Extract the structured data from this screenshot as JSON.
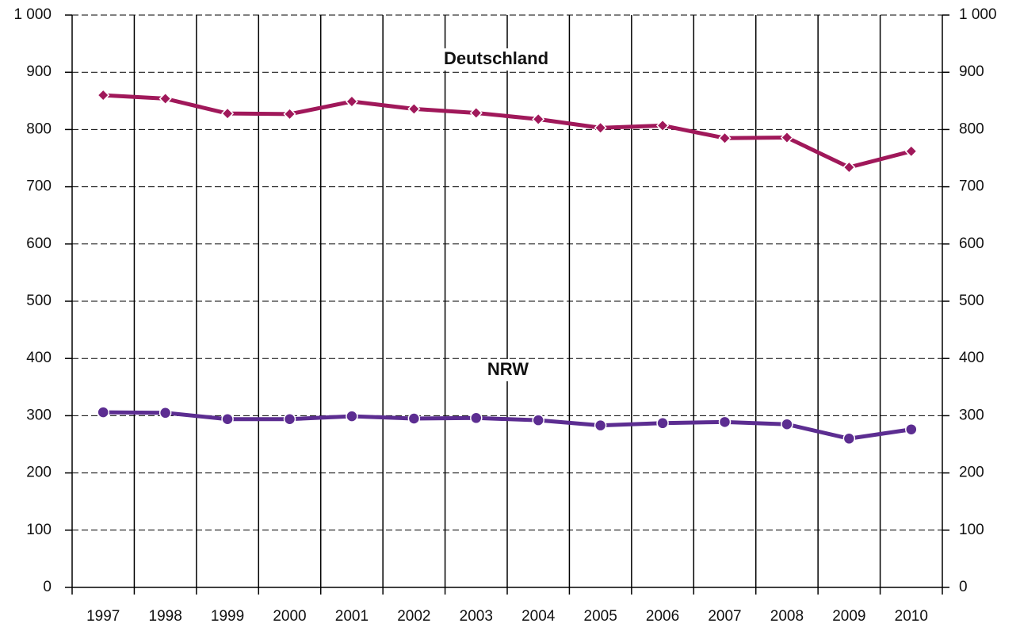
{
  "chart_data": {
    "type": "line",
    "categories": [
      "1997",
      "1998",
      "1999",
      "2000",
      "2001",
      "2002",
      "2003",
      "2004",
      "2005",
      "2006",
      "2007",
      "2008",
      "2009",
      "2010"
    ],
    "series": [
      {
        "name": "Deutschland",
        "color": "#a0185a",
        "marker": "diamond",
        "values": [
          860,
          854,
          828,
          827,
          849,
          836,
          829,
          818,
          803,
          807,
          785,
          786,
          734,
          762
        ]
      },
      {
        "name": "NRW",
        "color": "#5c2d91",
        "marker": "circle",
        "values": [
          306,
          305,
          294,
          294,
          299,
          295,
          296,
          292,
          283,
          287,
          289,
          285,
          260,
          276
        ]
      }
    ],
    "ylim": [
      0,
      1000
    ],
    "yticks": [
      0,
      100,
      200,
      300,
      400,
      500,
      600,
      700,
      800,
      900,
      {
        "value": 1000,
        "label": "1 000"
      }
    ],
    "y2lim": [
      0,
      1000
    ],
    "y2ticks": [
      0,
      100,
      200,
      300,
      400,
      500,
      600,
      700,
      800,
      900,
      {
        "value": 1000,
        "label": "1 000"
      }
    ],
    "grid": true
  }
}
